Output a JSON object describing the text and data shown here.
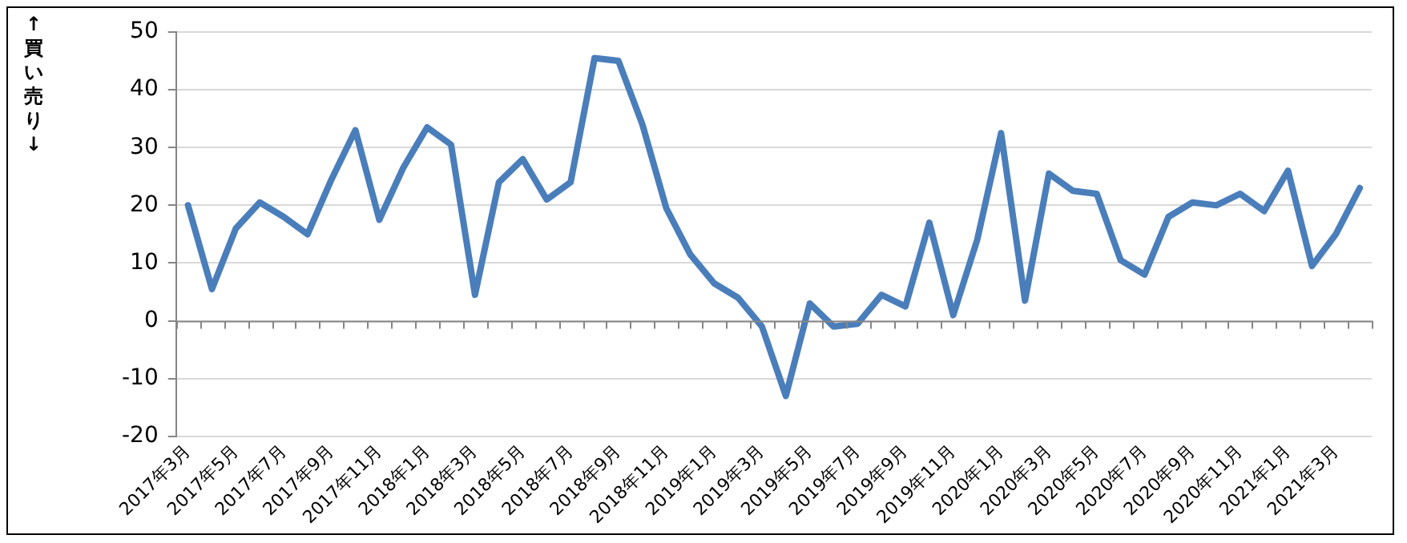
{
  "chart_data": {
    "type": "line",
    "ylabel": "↑買い売り↓",
    "categories": [
      "2017年3月",
      null,
      "2017年5月",
      null,
      "2017年7月",
      null,
      "2017年9月",
      null,
      "2017年11月",
      null,
      "2018年1月",
      null,
      "2018年3月",
      null,
      "2018年5月",
      null,
      "2018年7月",
      null,
      "2018年9月",
      null,
      "2018年11月",
      null,
      "2019年1月",
      null,
      "2019年3月",
      null,
      "2019年5月",
      null,
      "2019年7月",
      null,
      "2019年9月",
      null,
      "2019年11月",
      null,
      "2020年1月",
      null,
      "2020年3月",
      null,
      "2020年5月",
      null,
      "2020年7月",
      null,
      "2020年9月",
      null,
      "2020年11月",
      null,
      "2021年1月",
      null,
      "2021年3月",
      null
    ],
    "series": [
      {
        "color": "#4a7ebb",
        "values": [
          20,
          5.5,
          16,
          20.5,
          18,
          15,
          24.5,
          33,
          17.5,
          26.5,
          33.5,
          30.5,
          4.5,
          24,
          28,
          21,
          24,
          45.5,
          45,
          34,
          19.5,
          11.5,
          6.5,
          4,
          -1,
          -13,
          3,
          -1,
          -0.5,
          4.5,
          2.5,
          17,
          1,
          14,
          32.5,
          3.5,
          25.5,
          22.5,
          22,
          10.5,
          8,
          18,
          20.5,
          20,
          22,
          19,
          26,
          9.5,
          15,
          23
        ]
      }
    ],
    "ylim": [
      -20,
      50
    ],
    "yticks": [
      -20,
      -10,
      0,
      10,
      20,
      30,
      40,
      50
    ],
    "grid": "y",
    "legend": false,
    "marker": "none",
    "line_style": "solid"
  }
}
